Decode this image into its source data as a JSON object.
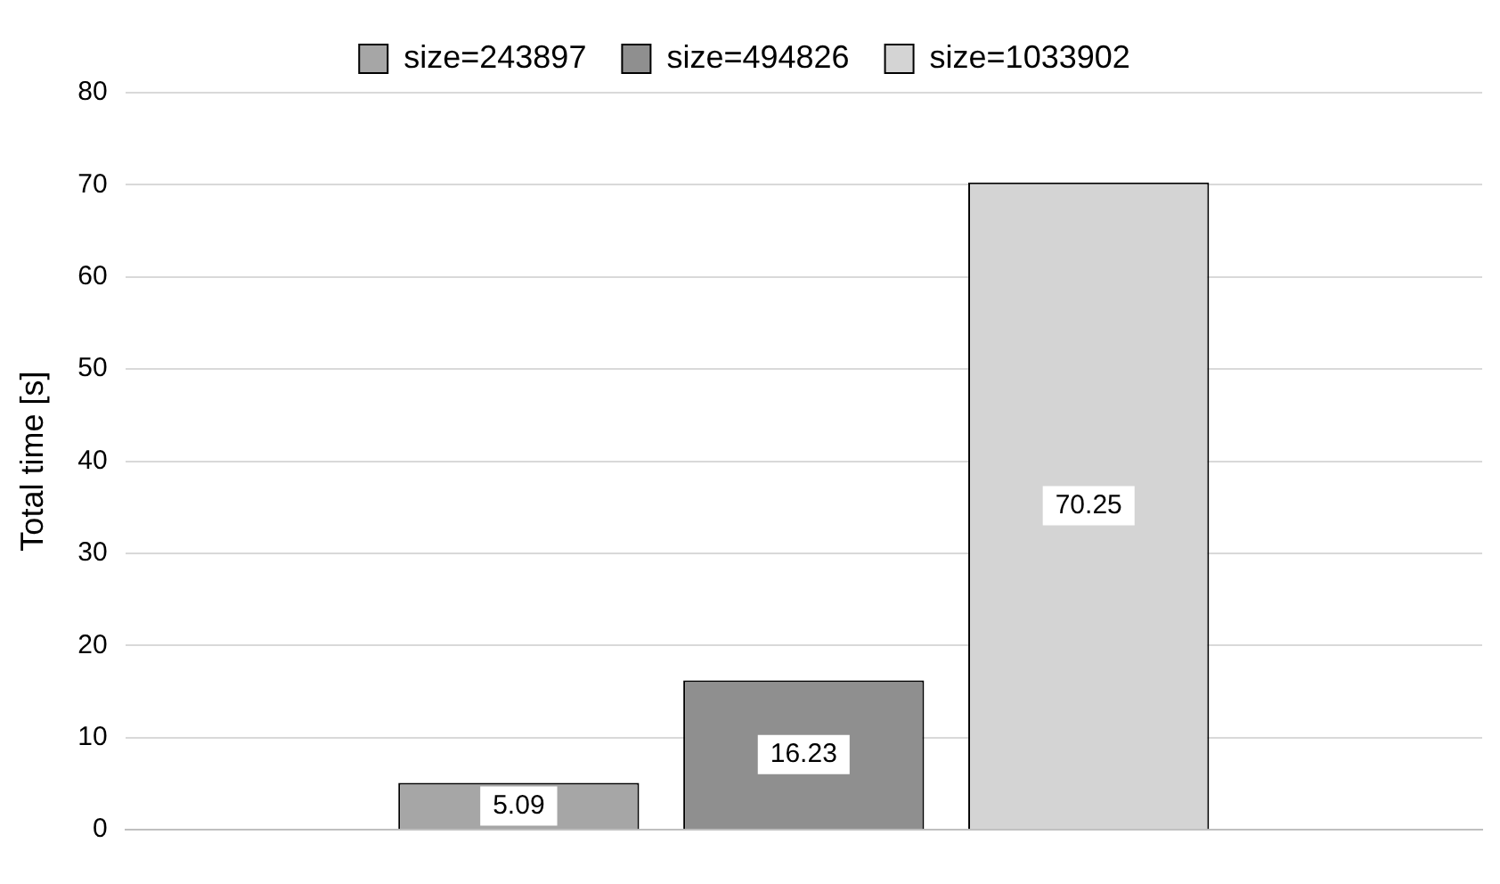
{
  "chart_data": {
    "type": "bar",
    "ylabel": "Total time [s]",
    "categories": [
      null
    ],
    "series": [
      {
        "name": "size=243897",
        "color": "#a6a6a6",
        "values": [
          5.09
        ]
      },
      {
        "name": "size=494826",
        "color": "#8f8f8f",
        "values": [
          16.23
        ]
      },
      {
        "name": "size=1033902",
        "color": "#d4d4d4",
        "values": [
          70.25
        ]
      }
    ],
    "ylim": [
      0,
      80
    ],
    "yticks": [
      0,
      10,
      20,
      30,
      40,
      50,
      60,
      70,
      80
    ],
    "grid": "y",
    "legend": "top",
    "data_labels": true
  }
}
